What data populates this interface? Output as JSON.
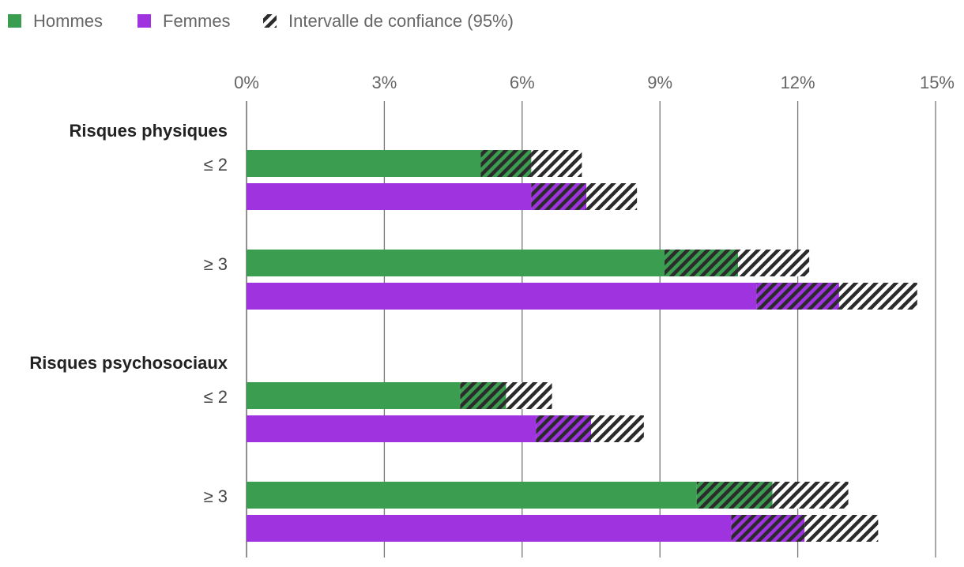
{
  "chart_data": {
    "type": "bar",
    "orientation": "horizontal",
    "legend": [
      {
        "key": "hommes",
        "label": "Hommes",
        "color": "#3a9d50"
      },
      {
        "key": "femmes",
        "label": "Femmes",
        "color": "#9f33e0"
      },
      {
        "key": "ci",
        "label": "Intervalle de confiance (95%)",
        "pattern": "hatch"
      }
    ],
    "x_ticks": [
      "0%",
      "3%",
      "6%",
      "9%",
      "12%",
      "15%"
    ],
    "xlim": [
      0,
      15
    ],
    "grid": true,
    "groups": [
      {
        "label": "Risques physiques",
        "rows": [
          {
            "label": "≤ 2",
            "hommes": {
              "value": 6.2,
              "ci_low": 5.1,
              "ci_high": 7.3
            },
            "femmes": {
              "value": 7.4,
              "ci_low": 6.2,
              "ci_high": 8.5
            }
          },
          {
            "label": "≥ 3",
            "hommes": {
              "value": 10.7,
              "ci_low": 9.1,
              "ci_high": 12.25
            },
            "femmes": {
              "value": 12.9,
              "ci_low": 11.1,
              "ci_high": 14.6
            }
          }
        ]
      },
      {
        "label": "Risques psychosociaux",
        "rows": [
          {
            "label": "≤ 2",
            "hommes": {
              "value": 5.65,
              "ci_low": 4.65,
              "ci_high": 6.65
            },
            "femmes": {
              "value": 7.5,
              "ci_low": 6.3,
              "ci_high": 8.65
            }
          },
          {
            "label": "≥ 3",
            "hommes": {
              "value": 11.45,
              "ci_low": 9.8,
              "ci_high": 13.1
            },
            "femmes": {
              "value": 12.15,
              "ci_low": 10.55,
              "ci_high": 13.75
            }
          }
        ]
      }
    ]
  }
}
